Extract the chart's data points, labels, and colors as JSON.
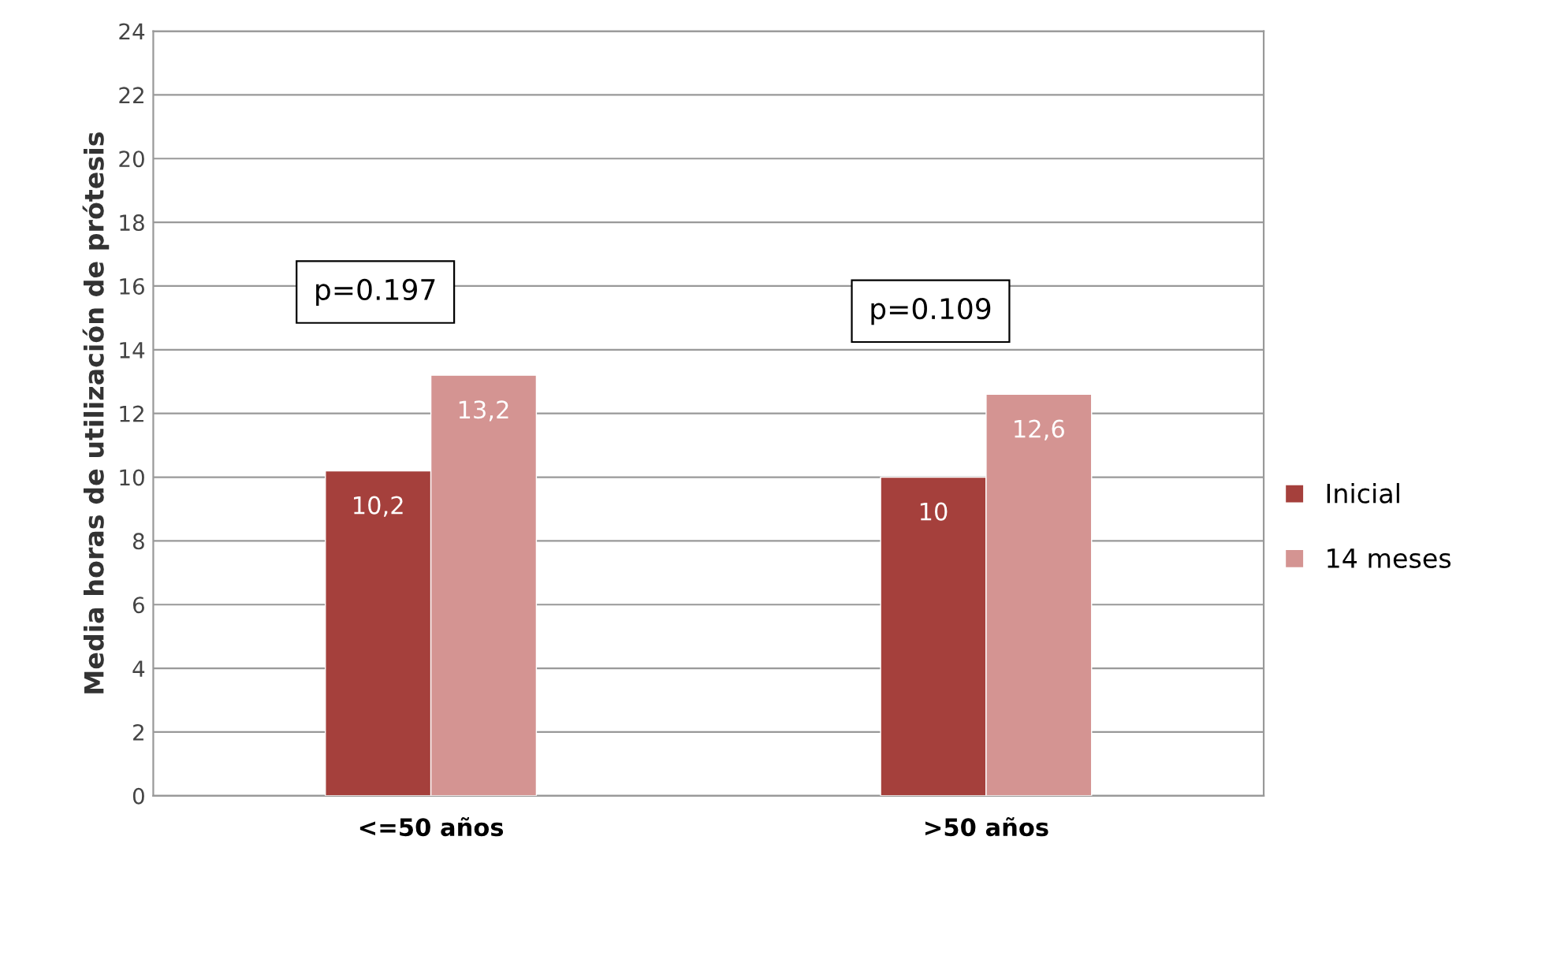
{
  "chart_data": {
    "type": "bar",
    "ylabel": "Media horas de utilización de prótesis",
    "categories": [
      "<=50 años",
      ">50 años"
    ],
    "series": [
      {
        "name": "Inicial",
        "color": "#a5403c",
        "values": [
          10.2,
          10
        ],
        "value_labels": [
          "10,2",
          "10"
        ]
      },
      {
        "name": "14 meses",
        "color": "#d49492",
        "values": [
          13.2,
          12.6
        ],
        "value_labels": [
          "13,2",
          "12,6"
        ]
      }
    ],
    "ylim": [
      0,
      24
    ],
    "yticks": [
      0,
      2,
      4,
      6,
      8,
      10,
      12,
      14,
      16,
      18,
      20,
      22,
      24
    ],
    "grid": "y",
    "legend": "right",
    "annotations": [
      "p=0.197",
      "p=0.109"
    ]
  }
}
